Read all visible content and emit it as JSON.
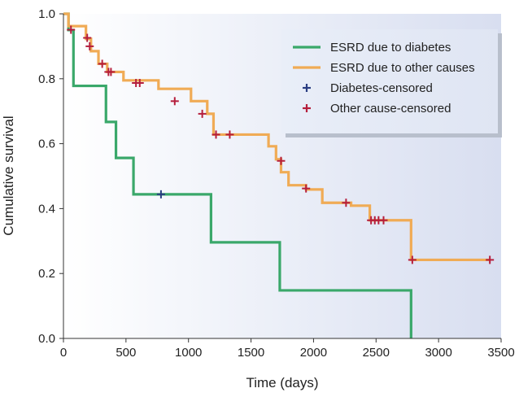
{
  "chart_data": {
    "type": "line",
    "subtype": "kaplan-meier step curves",
    "title": "",
    "xlabel": "Time (days)",
    "ylabel": "Cumulative survival",
    "xlim": [
      0,
      3500
    ],
    "ylim": [
      0,
      1.0
    ],
    "x_ticks": [
      0,
      500,
      1000,
      1500,
      2000,
      2500,
      3000,
      3500
    ],
    "x_tick_labels": [
      "0",
      "500",
      "1000",
      "1500",
      "2000",
      "2500",
      "3000",
      "3500"
    ],
    "y_ticks": [
      0,
      0.2,
      0.4,
      0.6,
      0.8,
      1.0
    ],
    "y_tick_labels": [
      "0.0",
      "0.2",
      "0.4",
      "0.6",
      "0.8",
      "1.0"
    ],
    "grid": false,
    "background_gradient": true,
    "legend_position": "top-right",
    "series": [
      {
        "name": "ESRD due to diabetes",
        "color": "#3aa86a",
        "steps": [
          [
            0,
            1.0
          ],
          [
            40,
            0.95
          ],
          [
            80,
            0.778
          ],
          [
            340,
            0.667
          ],
          [
            420,
            0.556
          ],
          [
            560,
            0.444
          ],
          [
            1180,
            0.296
          ],
          [
            1730,
            0.148
          ],
          [
            2780,
            0.0
          ]
        ]
      },
      {
        "name": "ESRD due to other causes",
        "color": "#f0ab55",
        "steps": [
          [
            0,
            1.0
          ],
          [
            40,
            0.962
          ],
          [
            180,
            0.923
          ],
          [
            220,
            0.885
          ],
          [
            280,
            0.846
          ],
          [
            350,
            0.821
          ],
          [
            480,
            0.795
          ],
          [
            760,
            0.769
          ],
          [
            1020,
            0.731
          ],
          [
            1150,
            0.692
          ],
          [
            1200,
            0.628
          ],
          [
            1640,
            0.592
          ],
          [
            1700,
            0.552
          ],
          [
            1740,
            0.512
          ],
          [
            1800,
            0.472
          ],
          [
            1940,
            0.459
          ],
          [
            2070,
            0.418
          ],
          [
            2300,
            0.409
          ],
          [
            2450,
            0.364
          ],
          [
            2780,
            0.242
          ]
        ]
      }
    ],
    "censored": [
      {
        "name": "Diabetes-censored",
        "color": "#2a3d82",
        "x": [
          780
        ],
        "y": [
          0.444
        ]
      },
      {
        "name": "Other cause-censored",
        "color": "#b51e3c",
        "x": [
          60,
          190,
          210,
          310,
          360,
          380,
          580,
          610,
          890,
          1110,
          1220,
          1330,
          1740,
          1940,
          2260,
          2460,
          2490,
          2520,
          2560,
          2790,
          3410
        ],
        "y": [
          0.951,
          0.926,
          0.9,
          0.846,
          0.821,
          0.821,
          0.787,
          0.787,
          0.731,
          0.692,
          0.628,
          0.628,
          0.547,
          0.462,
          0.418,
          0.364,
          0.364,
          0.364,
          0.364,
          0.242,
          0.242
        ]
      }
    ],
    "legend": [
      {
        "label": "ESRD due to diabetes",
        "kind": "line",
        "color": "#3aa86a"
      },
      {
        "label": "ESRD due to other causes",
        "kind": "line",
        "color": "#f0ab55"
      },
      {
        "label": "Diabetes-censored",
        "kind": "cross",
        "color": "#2a3d82"
      },
      {
        "label": "Other cause-censored",
        "kind": "cross",
        "color": "#b51e3c"
      }
    ]
  }
}
